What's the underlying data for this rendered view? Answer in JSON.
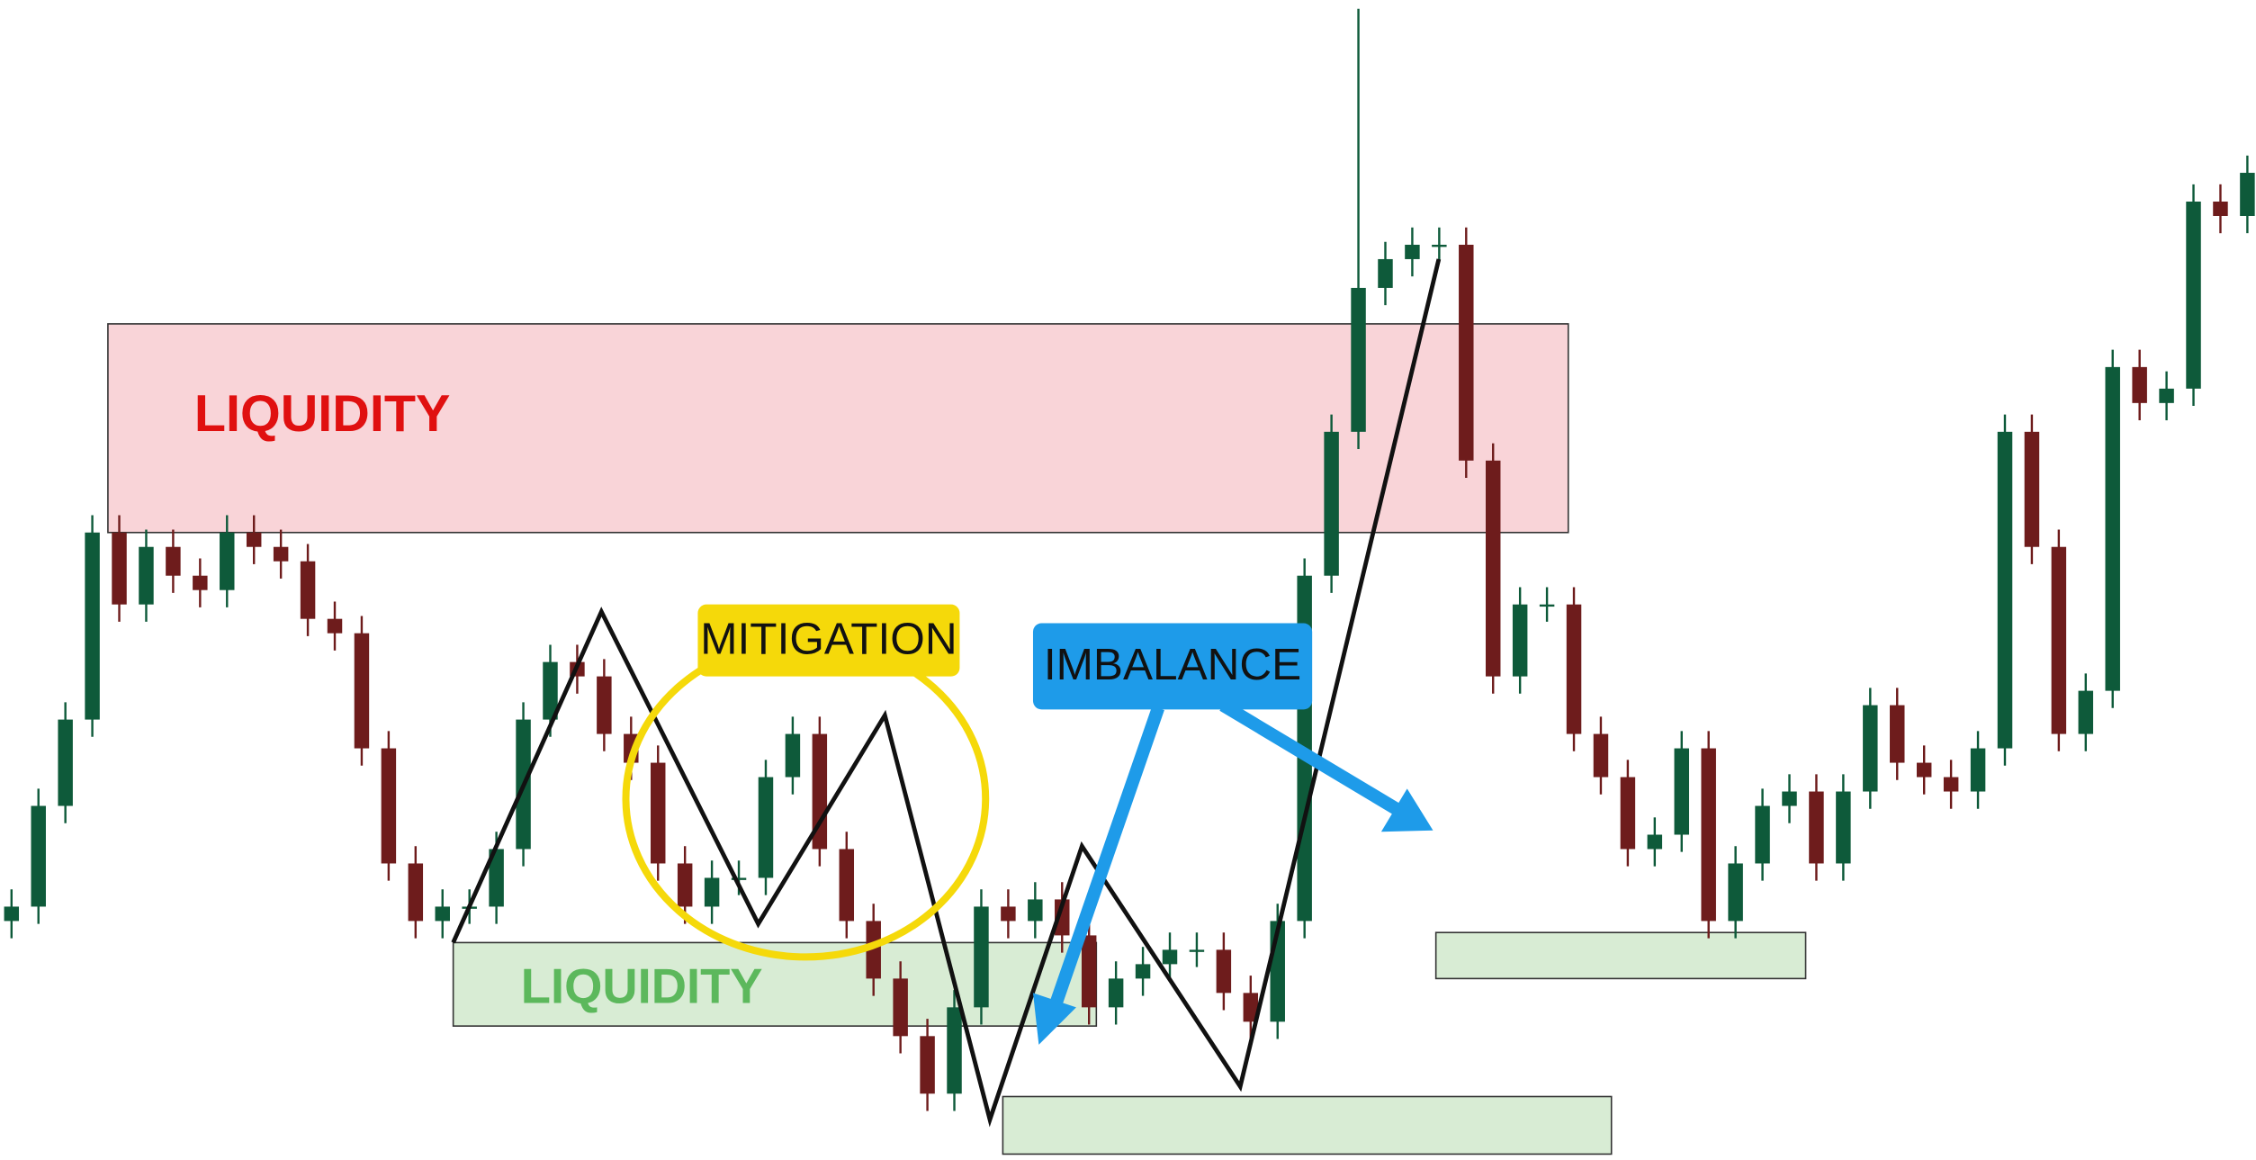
{
  "chart_data": {
    "type": "candlestick",
    "open": [
      166,
      176,
      246,
      306,
      436,
      386,
      426,
      406,
      396,
      436,
      426,
      416,
      376,
      366,
      286,
      206,
      166,
      176,
      176,
      216,
      306,
      346,
      336,
      296,
      276,
      206,
      176,
      196,
      196,
      266,
      296,
      216,
      166,
      126,
      86,
      46,
      106,
      176,
      166,
      181,
      156,
      106,
      126,
      136,
      146,
      146,
      116,
      96,
      166,
      406,
      506,
      606,
      626,
      636,
      636,
      486,
      336,
      386,
      386,
      296,
      266,
      216,
      226,
      286,
      166,
      206,
      246,
      256,
      206,
      256,
      316,
      276,
      266,
      256,
      286,
      506,
      426,
      296,
      326,
      551,
      526,
      536,
      666,
      656
    ],
    "high": [
      188,
      258,
      318,
      448,
      448,
      438,
      438,
      418,
      448,
      448,
      438,
      428,
      388,
      378,
      298,
      218,
      188,
      188,
      228,
      318,
      358,
      358,
      348,
      308,
      288,
      218,
      208,
      208,
      278,
      308,
      308,
      228,
      178,
      138,
      98,
      118,
      188,
      188,
      193,
      193,
      168,
      138,
      148,
      158,
      158,
      158,
      128,
      178,
      418,
      518,
      800,
      638,
      648,
      648,
      648,
      498,
      398,
      398,
      398,
      308,
      278,
      238,
      298,
      298,
      218,
      258,
      268,
      268,
      268,
      328,
      328,
      288,
      278,
      298,
      518,
      518,
      438,
      338,
      563,
      563,
      548,
      678,
      678,
      698
    ],
    "low": [
      154,
      164,
      234,
      294,
      374,
      374,
      394,
      384,
      384,
      414,
      404,
      364,
      354,
      274,
      194,
      154,
      154,
      164,
      164,
      204,
      294,
      324,
      284,
      264,
      194,
      164,
      164,
      184,
      184,
      254,
      204,
      154,
      114,
      74,
      34,
      34,
      94,
      154,
      154,
      144,
      94,
      94,
      114,
      124,
      134,
      104,
      84,
      84,
      154,
      394,
      494,
      594,
      614,
      624,
      474,
      324,
      324,
      374,
      284,
      254,
      204,
      204,
      214,
      154,
      154,
      194,
      234,
      194,
      194,
      244,
      264,
      254,
      244,
      244,
      274,
      414,
      284,
      284,
      314,
      514,
      514,
      524,
      644,
      644
    ],
    "close": [
      176,
      246,
      306,
      436,
      386,
      426,
      406,
      396,
      436,
      426,
      416,
      376,
      366,
      286,
      206,
      166,
      176,
      176,
      216,
      306,
      346,
      336,
      296,
      276,
      206,
      176,
      196,
      196,
      266,
      296,
      216,
      166,
      126,
      86,
      46,
      106,
      176,
      166,
      181,
      156,
      106,
      126,
      136,
      146,
      146,
      116,
      96,
      166,
      406,
      506,
      606,
      626,
      636,
      636,
      486,
      336,
      386,
      386,
      296,
      266,
      216,
      226,
      286,
      166,
      206,
      246,
      256,
      206,
      256,
      316,
      276,
      266,
      256,
      286,
      506,
      426,
      296,
      326,
      551,
      526,
      536,
      666,
      656,
      686
    ],
    "up_color": "#0e5a3a",
    "down_color": "#6e1c1c",
    "ylim": [
      0,
      806
    ],
    "annotations": [
      "LIQUIDITY",
      "MITIGATION",
      "IMBALANCE",
      "LIQUIDITY"
    ]
  }
}
